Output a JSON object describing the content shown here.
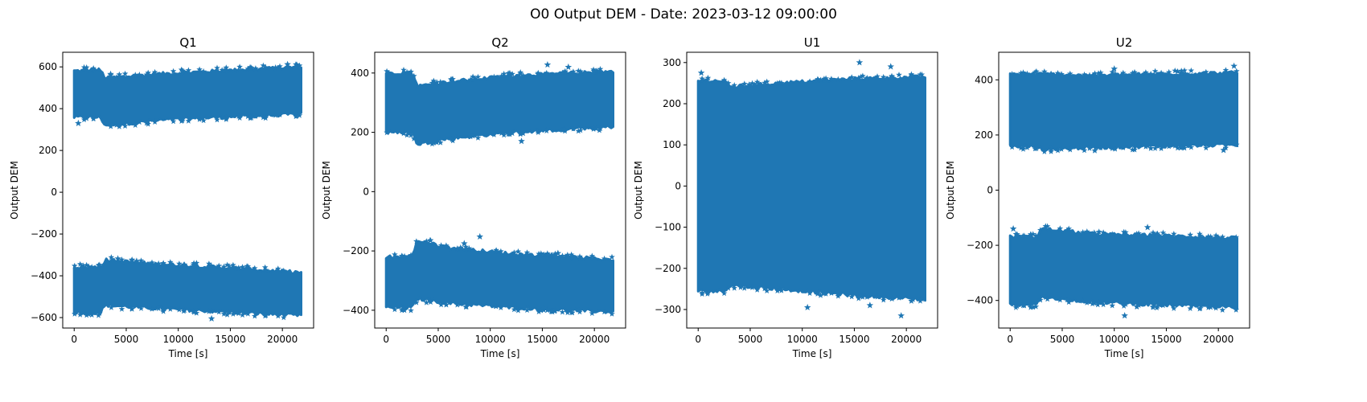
{
  "figure": {
    "suptitle": "O0 Output DEM - Date: 2023-03-12 09:00:00"
  },
  "colors": {
    "series": "#1f77b4",
    "axes": "#000000",
    "background": "#ffffff"
  },
  "chart_data": [
    {
      "type": "scatter",
      "marker": "star",
      "title": "Q1",
      "xlabel": "Time [s]",
      "ylabel": "Output DEM",
      "xlim": [
        -1100,
        23000
      ],
      "ylim": [
        -650,
        670
      ],
      "xticks": [
        0,
        5000,
        10000,
        15000,
        20000
      ],
      "yticks": [
        -600,
        -400,
        -200,
        0,
        200,
        400,
        600
      ],
      "grid": false,
      "x_range": [
        0,
        21800
      ],
      "bands": [
        {
          "x": [
            0,
            2500,
            3000,
            8000,
            14000,
            21800
          ],
          "lower": [
            360,
            360,
            320,
            345,
            360,
            375
          ],
          "upper": [
            580,
            585,
            545,
            565,
            580,
            600
          ]
        },
        {
          "x": [
            0,
            2500,
            3000,
            8000,
            14000,
            21800
          ],
          "lower": [
            -575,
            -575,
            -540,
            -555,
            -570,
            -590
          ],
          "upper": [
            -360,
            -360,
            -325,
            -345,
            -360,
            -385
          ]
        }
      ],
      "outliers": [
        {
          "x": 400,
          "y": 330
        },
        {
          "x": 3500,
          "y": 565
        },
        {
          "x": 4200,
          "y": -318
        },
        {
          "x": 13200,
          "y": -605
        },
        {
          "x": 20500,
          "y": 612
        },
        {
          "x": 6000,
          "y": -330
        }
      ]
    },
    {
      "type": "scatter",
      "marker": "star",
      "title": "Q2",
      "xlabel": "Time [s]",
      "ylabel": "Output DEM",
      "xlim": [
        -1100,
        23000
      ],
      "ylim": [
        -460,
        470
      ],
      "xticks": [
        0,
        5000,
        10000,
        15000,
        20000
      ],
      "yticks": [
        -400,
        -200,
        0,
        200,
        400
      ],
      "grid": false,
      "x_range": [
        0,
        21800
      ],
      "bands": [
        {
          "x": [
            0,
            2500,
            3000,
            6000,
            12000,
            21800
          ],
          "lower": [
            200,
            200,
            160,
            180,
            200,
            220
          ],
          "upper": [
            400,
            400,
            355,
            370,
            390,
            405
          ]
        },
        {
          "x": [
            0,
            2500,
            3000,
            6000,
            12000,
            21800
          ],
          "lower": [
            -390,
            -390,
            -360,
            -375,
            -390,
            -405
          ],
          "upper": [
            -220,
            -220,
            -165,
            -190,
            -210,
            -230
          ]
        }
      ],
      "outliers": [
        {
          "x": 9000,
          "y": -152
        },
        {
          "x": 15500,
          "y": 428
        },
        {
          "x": 17500,
          "y": 420
        },
        {
          "x": 13000,
          "y": 170
        },
        {
          "x": 16500,
          "y": -208
        },
        {
          "x": 7500,
          "y": -175
        }
      ]
    },
    {
      "type": "scatter",
      "marker": "star",
      "title": "U1",
      "xlabel": "Time [s]",
      "ylabel": "Output DEM",
      "xlim": [
        -1100,
        23000
      ],
      "ylim": [
        -345,
        325
      ],
      "xticks": [
        0,
        5000,
        10000,
        15000,
        20000
      ],
      "yticks": [
        -300,
        -200,
        -100,
        0,
        100,
        200,
        300
      ],
      "grid": false,
      "x_range": [
        0,
        21800
      ],
      "bands": [
        {
          "x": [
            0,
            2500,
            3000,
            8000,
            15000,
            21800
          ],
          "lower": [
            -255,
            -255,
            -240,
            -250,
            -265,
            -275
          ],
          "upper": [
            255,
            255,
            240,
            250,
            260,
            265
          ]
        }
      ],
      "outliers": [
        {
          "x": 15500,
          "y": 300
        },
        {
          "x": 19500,
          "y": -315
        },
        {
          "x": 10500,
          "y": -295
        },
        {
          "x": 18500,
          "y": 290
        },
        {
          "x": 300,
          "y": 275
        },
        {
          "x": 16500,
          "y": -290
        }
      ]
    },
    {
      "type": "scatter",
      "marker": "star",
      "title": "U2",
      "xlabel": "Time [s]",
      "ylabel": "Output DEM",
      "xlim": [
        -1100,
        23000
      ],
      "ylim": [
        -500,
        500
      ],
      "xticks": [
        0,
        5000,
        10000,
        15000,
        20000
      ],
      "yticks": [
        -400,
        -200,
        0,
        200,
        400
      ],
      "grid": false,
      "x_range": [
        0,
        21800
      ],
      "bands": [
        {
          "x": [
            0,
            2500,
            3000,
            8000,
            14000,
            21800
          ],
          "lower": [
            160,
            160,
            150,
            155,
            160,
            165
          ],
          "upper": [
            420,
            420,
            420,
            415,
            420,
            425
          ]
        },
        {
          "x": [
            0,
            2500,
            3000,
            8000,
            14000,
            21800
          ],
          "lower": [
            -415,
            -415,
            -385,
            -405,
            -415,
            -425
          ],
          "upper": [
            -170,
            -170,
            -140,
            -160,
            -165,
            -175
          ]
        }
      ],
      "outliers": [
        {
          "x": 300,
          "y": -140
        },
        {
          "x": 11000,
          "y": -455
        },
        {
          "x": 21500,
          "y": 450
        },
        {
          "x": 13200,
          "y": -135
        },
        {
          "x": 10000,
          "y": 440
        },
        {
          "x": 20500,
          "y": 145
        }
      ]
    }
  ]
}
